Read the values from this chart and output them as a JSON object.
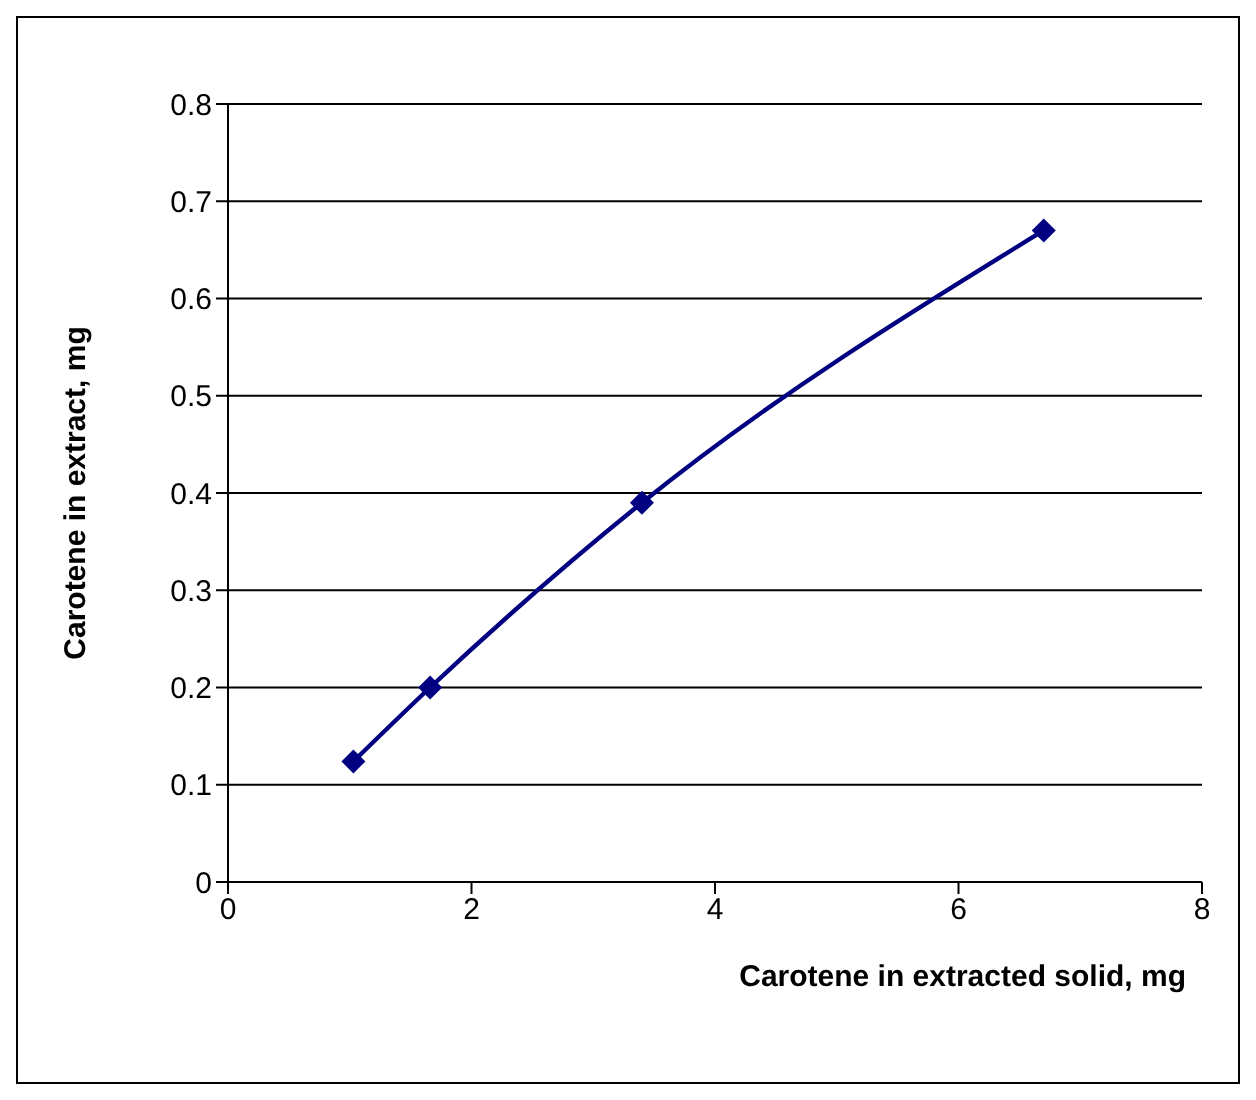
{
  "chart_data": {
    "type": "line",
    "xlabel": "Carotene in extracted solid, mg",
    "ylabel": "Carotene in extract, mg",
    "x": [
      1.03,
      1.66,
      3.4,
      6.7
    ],
    "series": [
      {
        "color": "#000080",
        "values": [
          0.124,
          0.2,
          0.39,
          0.67
        ]
      }
    ],
    "xlim": [
      0,
      8
    ],
    "xticks": [
      0,
      2,
      4,
      6,
      8
    ],
    "ylim": [
      0,
      0.8
    ],
    "yticks": [
      0,
      0.1,
      0.2,
      0.3,
      0.4,
      0.5,
      0.6,
      0.7,
      0.8
    ],
    "grid": "y",
    "marker": "diamond",
    "line_style": "solid",
    "legend": false
  }
}
